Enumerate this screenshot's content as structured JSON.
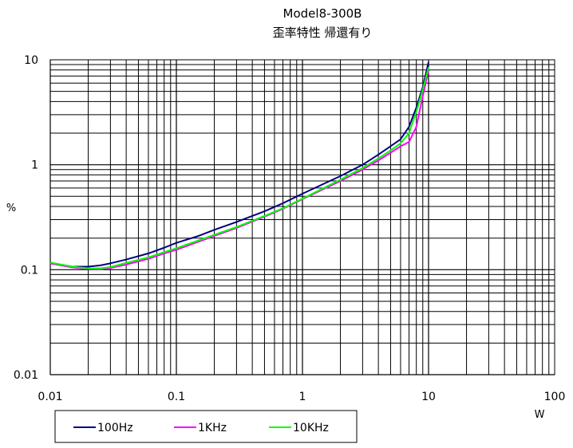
{
  "chart_data": {
    "type": "line",
    "title": "Model8-300B",
    "subtitle": "歪率特性 帰還有り",
    "xlabel": "W",
    "ylabel": "%",
    "xscale": "log",
    "yscale": "log",
    "xlim": [
      0.01,
      100
    ],
    "ylim": [
      0.01,
      10
    ],
    "grid": true,
    "legend_position": "bottom",
    "x_ticks": [
      {
        "value": 0.01,
        "label": "0.01"
      },
      {
        "value": 0.1,
        "label": "0.1"
      },
      {
        "value": 1,
        "label": "1"
      },
      {
        "value": 10,
        "label": "10"
      },
      {
        "value": 100,
        "label": "100"
      }
    ],
    "y_ticks": [
      {
        "value": 0.01,
        "label": "0.01"
      },
      {
        "value": 0.1,
        "label": "0.1"
      },
      {
        "value": 1,
        "label": "1"
      },
      {
        "value": 10,
        "label": "10"
      }
    ],
    "series": [
      {
        "name": "100Hz",
        "color": "#000080",
        "points": [
          [
            0.01,
            0.115
          ],
          [
            0.015,
            0.107
          ],
          [
            0.02,
            0.107
          ],
          [
            0.025,
            0.11
          ],
          [
            0.03,
            0.115
          ],
          [
            0.04,
            0.125
          ],
          [
            0.06,
            0.143
          ],
          [
            0.08,
            0.162
          ],
          [
            0.1,
            0.18
          ],
          [
            0.15,
            0.21
          ],
          [
            0.2,
            0.24
          ],
          [
            0.3,
            0.285
          ],
          [
            0.5,
            0.36
          ],
          [
            0.7,
            0.43
          ],
          [
            1,
            0.53
          ],
          [
            2,
            0.78
          ],
          [
            3,
            1.0
          ],
          [
            4,
            1.25
          ],
          [
            5,
            1.5
          ],
          [
            6,
            1.75
          ],
          [
            7,
            2.3
          ],
          [
            8,
            3.5
          ],
          [
            9,
            5.5
          ],
          [
            10,
            9.5
          ]
        ]
      },
      {
        "name": "1KHz",
        "color": "#ff00ff",
        "points": [
          [
            0.01,
            0.115
          ],
          [
            0.015,
            0.105
          ],
          [
            0.02,
            0.102
          ],
          [
            0.025,
            0.101
          ],
          [
            0.03,
            0.104
          ],
          [
            0.04,
            0.112
          ],
          [
            0.06,
            0.127
          ],
          [
            0.08,
            0.143
          ],
          [
            0.1,
            0.155
          ],
          [
            0.15,
            0.185
          ],
          [
            0.2,
            0.21
          ],
          [
            0.3,
            0.25
          ],
          [
            0.5,
            0.32
          ],
          [
            0.7,
            0.38
          ],
          [
            1,
            0.47
          ],
          [
            2,
            0.7
          ],
          [
            3,
            0.9
          ],
          [
            4,
            1.1
          ],
          [
            5,
            1.3
          ],
          [
            6,
            1.5
          ],
          [
            7,
            1.65
          ],
          [
            8,
            2.3
          ],
          [
            9,
            4.5
          ],
          [
            10,
            8.0
          ]
        ]
      },
      {
        "name": "10KHz",
        "color": "#00ff00",
        "points": [
          [
            0.01,
            0.117
          ],
          [
            0.015,
            0.107
          ],
          [
            0.02,
            0.103
          ],
          [
            0.025,
            0.103
          ],
          [
            0.03,
            0.106
          ],
          [
            0.04,
            0.116
          ],
          [
            0.06,
            0.131
          ],
          [
            0.08,
            0.147
          ],
          [
            0.1,
            0.16
          ],
          [
            0.15,
            0.19
          ],
          [
            0.2,
            0.215
          ],
          [
            0.3,
            0.255
          ],
          [
            0.5,
            0.325
          ],
          [
            0.7,
            0.385
          ],
          [
            1,
            0.475
          ],
          [
            2,
            0.72
          ],
          [
            3,
            0.93
          ],
          [
            4,
            1.15
          ],
          [
            5,
            1.37
          ],
          [
            6,
            1.6
          ],
          [
            7,
            2.0
          ],
          [
            8,
            3.2
          ],
          [
            9,
            5.2
          ],
          [
            10,
            8.5
          ]
        ]
      }
    ]
  }
}
